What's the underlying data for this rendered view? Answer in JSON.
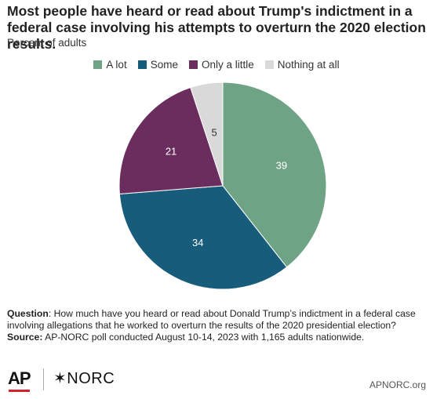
{
  "title": "Most people have heard or read about Trump's indictment in a federal case involving his attempts to overturn the 2020 election results.",
  "subtitle": "Percent of adults",
  "chart_data": {
    "type": "pie",
    "title": "Most people have heard or read about Trump's indictment in a federal case involving his attempts to overturn the 2020 election results.",
    "subtitle": "Percent of adults",
    "categories": [
      "A lot",
      "Some",
      "Only a little",
      "Nothing at all"
    ],
    "values": [
      39,
      34,
      21,
      5
    ],
    "colors": [
      "#6fa386",
      "#175c7b",
      "#6a2d5e",
      "#d9d9d9"
    ],
    "label_colors": [
      "#ffffff",
      "#ffffff",
      "#ffffff",
      "#333333"
    ],
    "legend_position": "top"
  },
  "footnote": {
    "question_label": "Question",
    "question_text": ": How much have you heard or read about Donald Trump’s indictment in a federal case involving allegations that he worked to overturn the results of the 2020 presidential election?",
    "source_label": "Source:",
    "source_text": " AP-NORC poll conducted August 10-14, 2023 with 1,165 adults nationwide."
  },
  "logos": {
    "ap": "AP",
    "norc": "NORC"
  },
  "site": "APNORC.org"
}
